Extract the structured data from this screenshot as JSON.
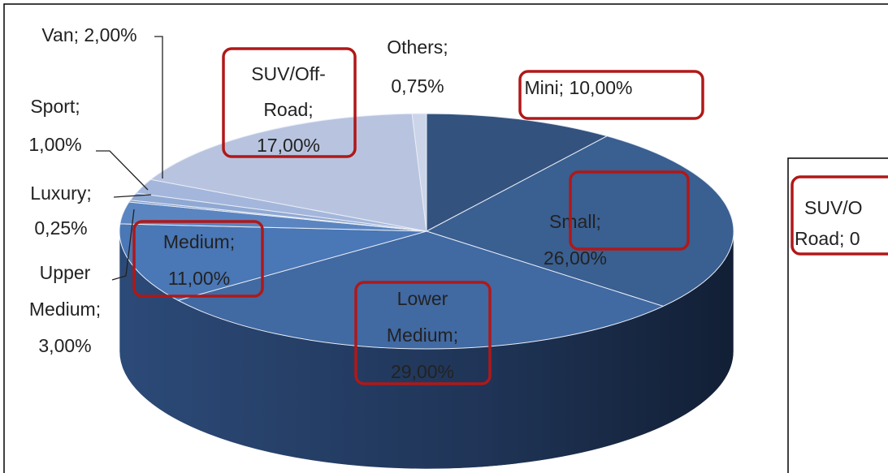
{
  "chart_data": {
    "type": "pie3d",
    "values": [
      10,
      26,
      29,
      11,
      3,
      0.25,
      1,
      2,
      17,
      0.75
    ],
    "labels": [
      [
        "Mini; 10,00%"
      ],
      [
        "Small;",
        "26,00%"
      ],
      [
        "Lower",
        "Medium;",
        "29,00%"
      ],
      [
        "Medium;",
        "11,00%"
      ],
      [
        "Upper",
        "Medium;",
        "3,00%"
      ],
      [
        "Luxury;",
        "0,25%"
      ],
      [
        "Sport;",
        "1,00%"
      ],
      [
        "Van; 2,00%"
      ],
      [
        "SUV/Off-",
        "Road;",
        "17,00%"
      ],
      [
        "Others;",
        "0,75%"
      ]
    ],
    "colors": [
      "#34527e",
      "#3a5f91",
      "#4169a2",
      "#4a77b5",
      "#5b85c0",
      "#7a98c9",
      "#90a9d3",
      "#a4b6db",
      "#b8c4df",
      "#cbd4e9"
    ]
  },
  "side_chart": {
    "label": [
      "SUV/O",
      "Road; 0"
    ]
  }
}
